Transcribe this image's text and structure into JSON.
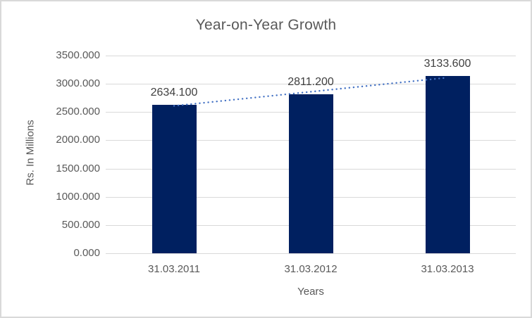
{
  "chart_data": {
    "type": "bar",
    "title": "Year-on-Year Growth",
    "xlabel": "Years",
    "ylabel": "Rs. In Millions",
    "categories": [
      "31.03.2011",
      "31.03.2012",
      "31.03.2013"
    ],
    "series": [
      {
        "name": "Rs. In Millions",
        "values": [
          2634.1,
          2811.2,
          3133.6
        ],
        "value_labels": [
          "2634.100",
          "2811.200",
          "3133.600"
        ]
      }
    ],
    "ylim": [
      0,
      3500
    ],
    "ytick_step": 500,
    "ytick_labels": [
      "0.000",
      "500.000",
      "1000.000",
      "1500.000",
      "2000.000",
      "2500.000",
      "3000.000",
      "3500.000"
    ],
    "grid": true,
    "legend": "none",
    "trendline": {
      "type": "linear",
      "style": "dotted",
      "series": "Rs. In Millions"
    },
    "colors": {
      "bar": "#002060",
      "trendline": "#4472c4",
      "gridline": "#d9d9d9",
      "axis_line": "#d9d9d9",
      "title_text": "#595959",
      "axis_text": "#595959",
      "data_label_text": "#404040",
      "frame_border": "#d9d9d9",
      "background": "#ffffff"
    }
  }
}
